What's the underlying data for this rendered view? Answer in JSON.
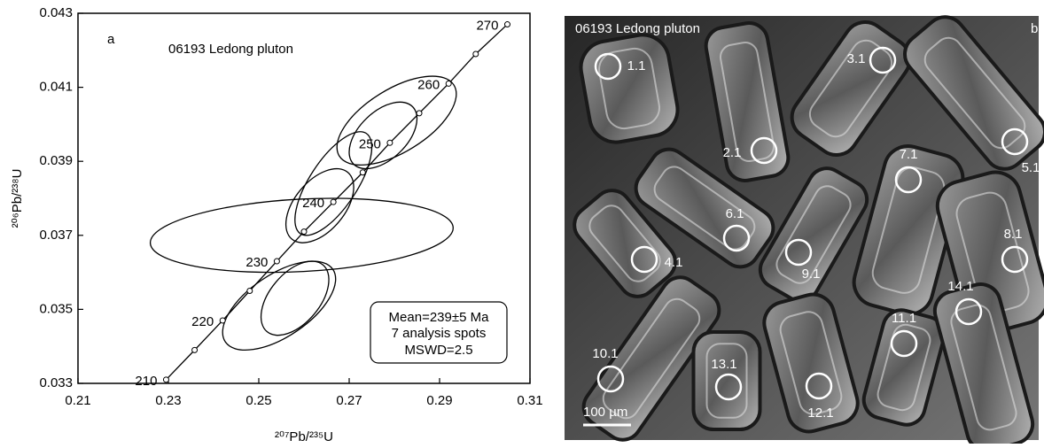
{
  "chart_data": {
    "type": "concordia",
    "panel_label": "a",
    "title": "06193 Ledong pluton",
    "x_label": "²⁰⁷Pb/²³⁵U",
    "y_label": "²⁰⁶Pb/²³⁸U",
    "xlim": [
      0.21,
      0.31
    ],
    "ylim": [
      0.033,
      0.043
    ],
    "xticks": [
      0.21,
      0.23,
      0.25,
      0.27,
      0.29,
      0.31
    ],
    "yticks": [
      0.033,
      0.035,
      0.037,
      0.039,
      0.041,
      0.043
    ],
    "concordia": {
      "x": [
        0.2295,
        0.2358,
        0.242,
        0.248,
        0.254,
        0.26,
        0.2665,
        0.273,
        0.279,
        0.2855,
        0.292,
        0.298,
        0.305
      ],
      "y": [
        0.0331,
        0.0339,
        0.0347,
        0.0355,
        0.0363,
        0.0371,
        0.0379,
        0.0387,
        0.0395,
        0.0403,
        0.0411,
        0.0419,
        0.0427
      ],
      "age_labels": [
        210,
        null,
        220,
        null,
        230,
        null,
        240,
        null,
        250,
        null,
        260,
        null,
        270
      ]
    },
    "ellipses": {
      "x": [
        0.2805,
        0.2775,
        0.2665,
        0.2635,
        0.2595,
        0.2545,
        0.258
      ],
      "y": [
        0.0401,
        0.0397,
        0.0384,
        0.0378,
        0.037,
        0.0351,
        0.0353
      ],
      "x_err": [
        0.0132,
        0.0075,
        0.0085,
        0.0075,
        0.0335,
        0.0125,
        0.0075
      ],
      "y_err": [
        0.0012,
        0.0009,
        0.0014,
        0.001,
        0.001,
        0.0012,
        0.001
      ],
      "rho": [
        0.6,
        0.5,
        0.7,
        0.5,
        0.2,
        0.6,
        0.5
      ]
    },
    "annotation": [
      "Mean=239±5 Ma",
      "7 analysis spots",
      "MSWD=2.5"
    ]
  },
  "cl_image": {
    "title": "06193 Ledong pluton",
    "panel_label": "b",
    "spot_labels": [
      "1.1",
      "2.1",
      "3.1",
      "5.1",
      "7.1",
      "6.1",
      "8.1",
      "4.1",
      "9.1",
      "14.1",
      "11.1",
      "10.1",
      "13.1",
      "12.1"
    ],
    "scale_label": "100 µm"
  }
}
